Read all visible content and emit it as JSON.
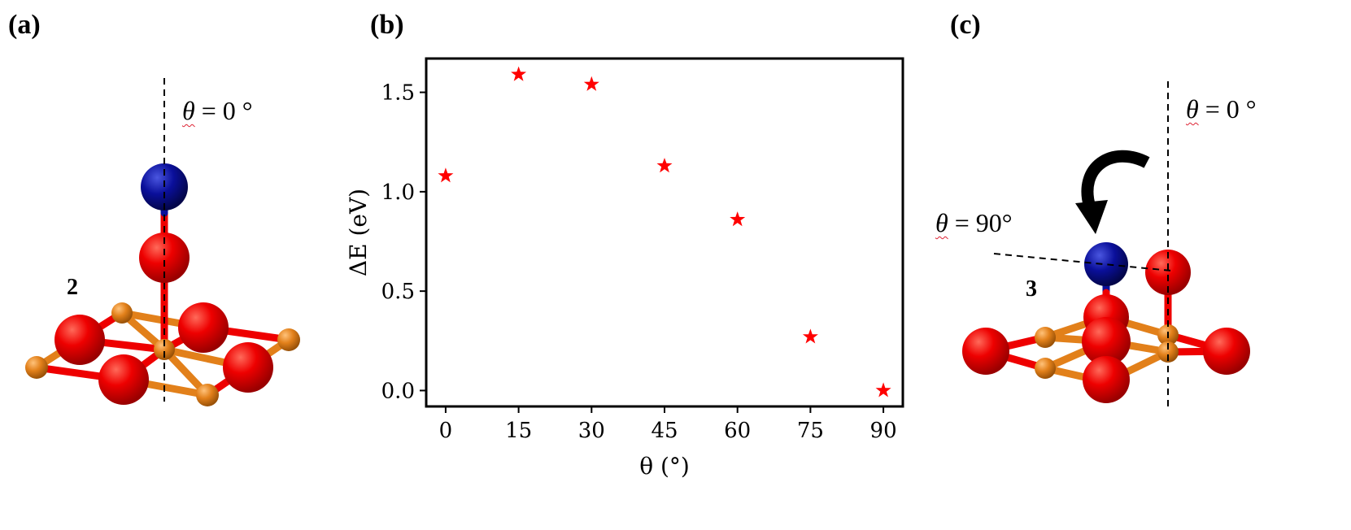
{
  "panels": {
    "a": {
      "label": "(a)",
      "structure_number": "2"
    },
    "b": {
      "label": "(b)"
    },
    "c": {
      "label": "(c)",
      "structure_number": "3"
    }
  },
  "annotations": {
    "theta_symbol": "θ",
    "a_top": " = 0 °",
    "c_top": " = 0 °",
    "c_rotated": " = 90°"
  },
  "atom_colors": {
    "oxygen": "#ee0000",
    "metal": "#e2801a",
    "nitrogen": "#0a0f9a"
  },
  "chart_data": {
    "type": "scatter",
    "marker": "star",
    "marker_color": "#ff0000",
    "x": [
      0,
      15,
      30,
      45,
      60,
      75,
      90
    ],
    "y": [
      1.08,
      1.59,
      1.54,
      1.13,
      0.86,
      0.27,
      0.0
    ],
    "xlabel": "θ (°)",
    "ylabel": "ΔE (eV)",
    "xlim": [
      -4,
      94
    ],
    "ylim": [
      -0.08,
      1.67
    ],
    "xticks": [
      0,
      15,
      30,
      45,
      60,
      75,
      90
    ],
    "yticks": [
      0.0,
      0.5,
      1.0,
      1.5
    ],
    "xtick_labels": [
      "0",
      "15",
      "30",
      "45",
      "60",
      "75",
      "90"
    ],
    "ytick_labels": [
      "0.0",
      "0.5",
      "1.0",
      "1.5"
    ],
    "grid": false
  }
}
